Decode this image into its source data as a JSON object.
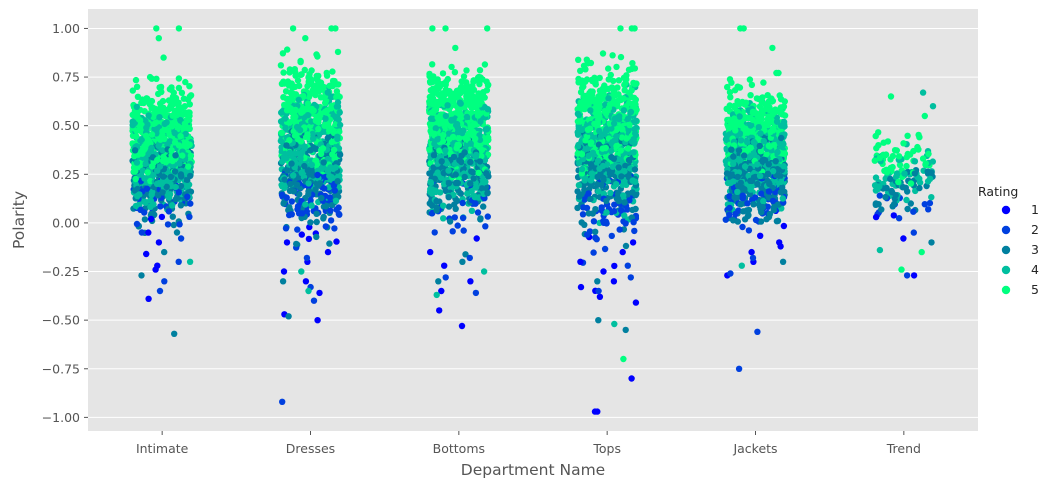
{
  "chart_data": {
    "type": "scatter",
    "subtype": "strip",
    "xlabel": "Department Name",
    "ylabel": "Polarity",
    "ylim": [
      -1.07,
      1.1
    ],
    "yticks": [
      1.0,
      0.75,
      0.5,
      0.25,
      0.0,
      -0.25,
      -0.5,
      -0.75,
      -1.0
    ],
    "ytick_labels": [
      "1.00",
      "0.75",
      "0.50",
      "0.25",
      "0.00",
      "−0.25",
      "−0.50",
      "−0.75",
      "−1.00"
    ],
    "categories": [
      "Intimate",
      "Dresses",
      "Bottoms",
      "Tops",
      "Jackets",
      "Trend"
    ],
    "grid": true,
    "legend": {
      "title": "Rating",
      "placement": "right",
      "entries": [
        {
          "label": "1",
          "color": "#0000ff"
        },
        {
          "label": "2",
          "color": "#0040df"
        },
        {
          "label": "3",
          "color": "#00809f"
        },
        {
          "label": "4",
          "color": "#00bf9f"
        },
        {
          "label": "5",
          "color": "#00ff80"
        }
      ]
    },
    "series": [
      {
        "name": "1",
        "color": "#0000ff",
        "points": [
          {
            "x": "Intimate",
            "y": -0.39
          },
          {
            "x": "Intimate",
            "y": -0.24
          },
          {
            "x": "Intimate",
            "y": -0.22
          },
          {
            "x": "Intimate",
            "y": -0.16
          },
          {
            "x": "Intimate",
            "y": -0.1
          },
          {
            "x": "Intimate",
            "y": -0.05
          },
          {
            "x": "Intimate",
            "y": 0.02
          },
          {
            "x": "Dresses",
            "y": -0.5
          },
          {
            "x": "Dresses",
            "y": -0.47
          },
          {
            "x": "Dresses",
            "y": -0.36
          },
          {
            "x": "Dresses",
            "y": -0.3
          },
          {
            "x": "Dresses",
            "y": -0.25
          },
          {
            "x": "Dresses",
            "y": -0.2
          },
          {
            "x": "Dresses",
            "y": -0.15
          },
          {
            "x": "Dresses",
            "y": -0.1
          },
          {
            "x": "Bottoms",
            "y": -0.53
          },
          {
            "x": "Bottoms",
            "y": -0.45
          },
          {
            "x": "Bottoms",
            "y": -0.35
          },
          {
            "x": "Bottoms",
            "y": -0.3
          },
          {
            "x": "Bottoms",
            "y": -0.22
          },
          {
            "x": "Bottoms",
            "y": -0.15
          },
          {
            "x": "Bottoms",
            "y": -0.08
          },
          {
            "x": "Tops",
            "y": -0.97
          },
          {
            "x": "Tops",
            "y": -0.97
          },
          {
            "x": "Tops",
            "y": -0.8
          },
          {
            "x": "Tops",
            "y": -0.41
          },
          {
            "x": "Tops",
            "y": -0.38
          },
          {
            "x": "Tops",
            "y": -0.33
          },
          {
            "x": "Tops",
            "y": -0.3
          },
          {
            "x": "Tops",
            "y": -0.25
          },
          {
            "x": "Tops",
            "y": -0.2
          },
          {
            "x": "Tops",
            "y": -0.15
          },
          {
            "x": "Tops",
            "y": -0.1
          },
          {
            "x": "Jackets",
            "y": -0.27
          },
          {
            "x": "Jackets",
            "y": -0.2
          },
          {
            "x": "Jackets",
            "y": -0.15
          },
          {
            "x": "Jackets",
            "y": -0.1
          },
          {
            "x": "Trend",
            "y": -0.27
          },
          {
            "x": "Trend",
            "y": -0.08
          },
          {
            "x": "Trend",
            "y": 0.03
          }
        ]
      },
      {
        "name": "2",
        "color": "#0040df",
        "points": [
          {
            "x": "Intimate",
            "y": -0.35
          },
          {
            "x": "Intimate",
            "y": -0.3
          },
          {
            "x": "Intimate",
            "y": -0.2
          },
          {
            "x": "Intimate",
            "y": -0.08
          },
          {
            "x": "Dresses",
            "y": -0.92
          },
          {
            "x": "Dresses",
            "y": -0.4
          },
          {
            "x": "Dresses",
            "y": -0.33
          },
          {
            "x": "Dresses",
            "y": -0.18
          },
          {
            "x": "Bottoms",
            "y": -0.36
          },
          {
            "x": "Bottoms",
            "y": -0.28
          },
          {
            "x": "Bottoms",
            "y": -0.18
          },
          {
            "x": "Tops",
            "y": -0.35
          },
          {
            "x": "Tops",
            "y": -0.28
          },
          {
            "x": "Tops",
            "y": -0.22
          },
          {
            "x": "Jackets",
            "y": -0.75
          },
          {
            "x": "Jackets",
            "y": -0.56
          },
          {
            "x": "Jackets",
            "y": -0.26
          },
          {
            "x": "Jackets",
            "y": -0.18
          },
          {
            "x": "Trend",
            "y": -0.27
          },
          {
            "x": "Trend",
            "y": -0.05
          },
          {
            "x": "Trend",
            "y": 0.07
          }
        ]
      },
      {
        "name": "3",
        "color": "#00809f",
        "points": [
          {
            "x": "Intimate",
            "y": -0.57
          },
          {
            "x": "Intimate",
            "y": -0.27
          },
          {
            "x": "Intimate",
            "y": -0.15
          },
          {
            "x": "Dresses",
            "y": -0.48
          },
          {
            "x": "Dresses",
            "y": -0.3
          },
          {
            "x": "Bottoms",
            "y": -0.3
          },
          {
            "x": "Bottoms",
            "y": -0.2
          },
          {
            "x": "Tops",
            "y": -0.55
          },
          {
            "x": "Tops",
            "y": -0.5
          },
          {
            "x": "Tops",
            "y": -0.3
          },
          {
            "x": "Jackets",
            "y": -0.2
          },
          {
            "x": "Trend",
            "y": -0.1
          },
          {
            "x": "Trend",
            "y": 0.1
          }
        ]
      },
      {
        "name": "4",
        "color": "#00bf9f",
        "points": [
          {
            "x": "Intimate",
            "y": -0.2
          },
          {
            "x": "Dresses",
            "y": -0.35
          },
          {
            "x": "Dresses",
            "y": -0.25
          },
          {
            "x": "Bottoms",
            "y": -0.37
          },
          {
            "x": "Bottoms",
            "y": -0.25
          },
          {
            "x": "Tops",
            "y": -0.52
          },
          {
            "x": "Jackets",
            "y": -0.22
          },
          {
            "x": "Trend",
            "y": -0.14
          },
          {
            "x": "Trend",
            "y": 0.67
          },
          {
            "x": "Trend",
            "y": 0.6
          }
        ]
      },
      {
        "name": "5",
        "color": "#00ff80",
        "points": [
          {
            "x": "Intimate",
            "y": 1.0
          },
          {
            "x": "Intimate",
            "y": 1.0
          },
          {
            "x": "Intimate",
            "y": 0.95
          },
          {
            "x": "Intimate",
            "y": 0.85
          },
          {
            "x": "Dresses",
            "y": 1.0
          },
          {
            "x": "Dresses",
            "y": 1.0
          },
          {
            "x": "Dresses",
            "y": 1.0
          },
          {
            "x": "Dresses",
            "y": 0.95
          },
          {
            "x": "Bottoms",
            "y": 1.0
          },
          {
            "x": "Bottoms",
            "y": 1.0
          },
          {
            "x": "Bottoms",
            "y": 1.0
          },
          {
            "x": "Bottoms",
            "y": 0.9
          },
          {
            "x": "Tops",
            "y": 1.0
          },
          {
            "x": "Tops",
            "y": 1.0
          },
          {
            "x": "Tops",
            "y": 1.0
          },
          {
            "x": "Tops",
            "y": -0.7
          },
          {
            "x": "Jackets",
            "y": 1.0
          },
          {
            "x": "Jackets",
            "y": 1.0
          },
          {
            "x": "Jackets",
            "y": 0.9
          },
          {
            "x": "Trend",
            "y": 0.65
          },
          {
            "x": "Trend",
            "y": 0.55
          },
          {
            "x": "Trend",
            "y": -0.24
          },
          {
            "x": "Trend",
            "y": -0.15
          }
        ]
      }
    ],
    "density": [
      {
        "category": "Intimate",
        "low": -0.25,
        "high": 0.75,
        "center": 0.35
      },
      {
        "category": "Dresses",
        "low": -0.3,
        "high": 0.92,
        "center": 0.4
      },
      {
        "category": "Bottoms",
        "low": -0.3,
        "high": 0.82,
        "center": 0.4
      },
      {
        "category": "Tops",
        "low": -0.35,
        "high": 0.9,
        "center": 0.4
      },
      {
        "category": "Jackets",
        "low": -0.2,
        "high": 0.78,
        "center": 0.35
      },
      {
        "category": "Trend",
        "low": -0.1,
        "high": 0.5,
        "center": 0.25
      }
    ]
  }
}
